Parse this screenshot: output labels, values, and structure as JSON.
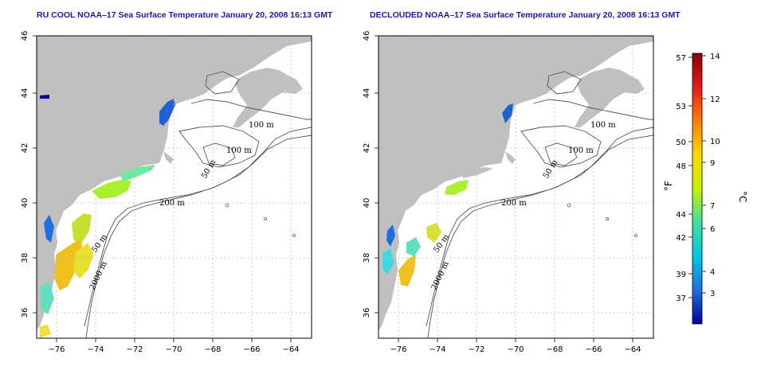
{
  "panels": [
    {
      "title": "RU COOL NOAA–17 Sea Surface Temperature January 20, 2008 16:13 GMT",
      "contour_labels": [
        "100 m",
        "100 m",
        "50 m",
        "200 m",
        "50 m",
        "2000 m"
      ]
    },
    {
      "title": "DECLOUDED NOAA–17 Sea Surface Temperature January 20, 2008 16:13 GMT",
      "contour_labels": [
        "100 m",
        "100 m",
        "50 m",
        "200 m",
        "50 m",
        "2000 m"
      ]
    }
  ],
  "axes": {
    "lon_ticks": [
      "−76",
      "−74",
      "−72",
      "−70",
      "−68",
      "−66",
      "−64"
    ],
    "lat_ticks": [
      "46",
      "44",
      "42",
      "40",
      "38",
      "36"
    ]
  },
  "colorbar": {
    "fahrenheit_labels": [
      "57",
      "53",
      "50",
      "48",
      "44",
      "42",
      "39",
      "37"
    ],
    "celsius_labels": [
      "14",
      "12",
      "10",
      "9",
      "7",
      "6",
      "4",
      "3"
    ],
    "fahrenheit_unit": "°F",
    "celsius_unit": "°C",
    "gradient_colors": [
      "#8b0000",
      "#e41a1c",
      "#ff7f00",
      "#ffd700",
      "#c8f000",
      "#40e0a0",
      "#00c8e0",
      "#1e70e0",
      "#0000a0"
    ]
  },
  "colors": {
    "land": "#c0c0c0",
    "water": "#ffffff",
    "contour": "#555555",
    "grid": "#bbbbbb",
    "title": "#1a1ab0"
  }
}
